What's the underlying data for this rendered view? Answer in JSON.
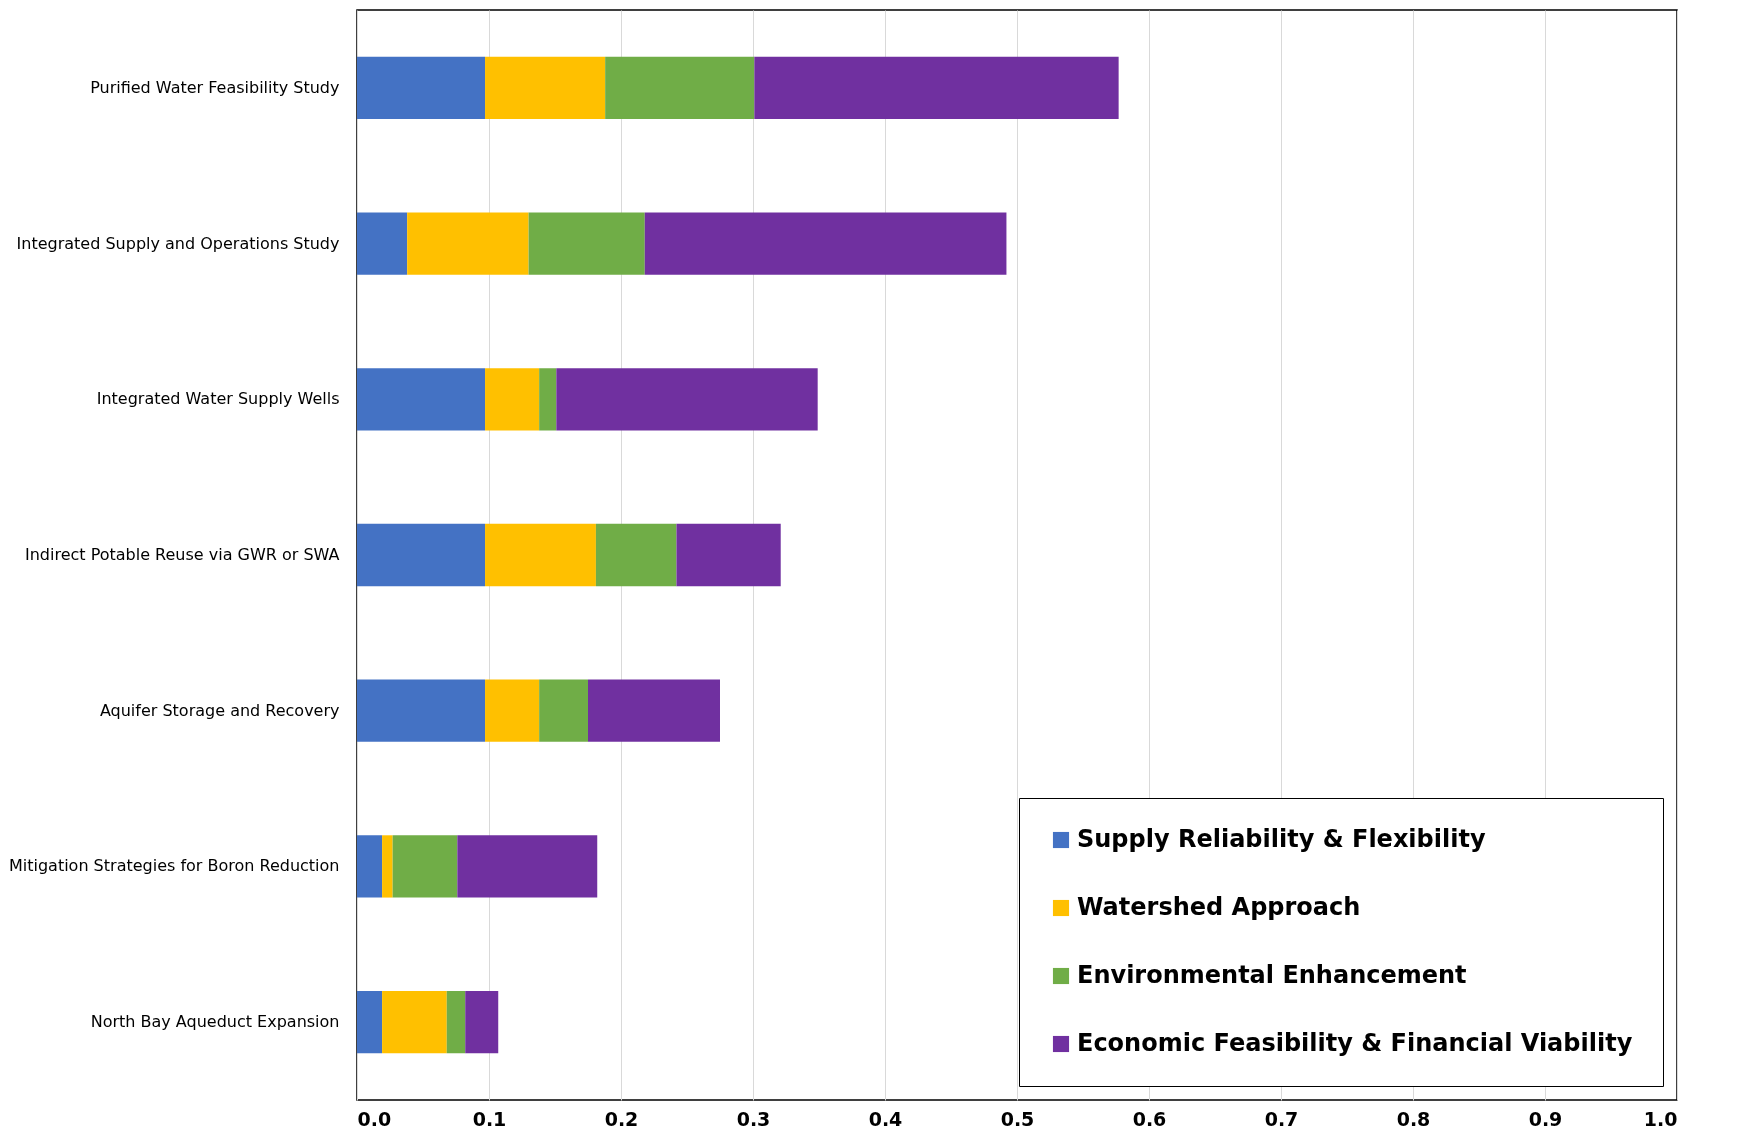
{
  "chart_data": {
    "type": "bar",
    "orientation": "horizontal",
    "stacked": true,
    "categories": [
      "Purified Water Feasibility Study",
      "Integrated Supply and Operations Study",
      "Integrated Water Supply Wells",
      "Indirect Potable Reuse via GWR or SWA",
      "Aquifer Storage and Recovery",
      "Mitigation Strategies for Boron Reduction",
      "North Bay Aqueduct Expansion"
    ],
    "series": [
      {
        "name": "Supply Reliability & Flexibility",
        "color": "#4472c4",
        "values": [
          0.097,
          0.038,
          0.097,
          0.097,
          0.097,
          0.019,
          0.019
        ]
      },
      {
        "name": "Watershed Approach",
        "color": "#ffc000",
        "values": [
          0.091,
          0.092,
          0.041,
          0.084,
          0.041,
          0.008,
          0.049
        ]
      },
      {
        "name": "Environmental Enhancement",
        "color": "#70ad47",
        "values": [
          0.113,
          0.088,
          0.013,
          0.061,
          0.037,
          0.049,
          0.014
        ]
      },
      {
        "name": "Economic Feasibility & Financial Viability",
        "color": "#7030a0",
        "values": [
          0.276,
          0.274,
          0.198,
          0.079,
          0.1,
          0.106,
          0.025
        ]
      }
    ],
    "xlim": [
      0,
      1
    ],
    "xticks": [
      {
        "value": 0,
        "label": "0.0"
      },
      0.1,
      0.2,
      0.3,
      0.4,
      0.5,
      0.6,
      0.7,
      0.8,
      0.9,
      {
        "value": 1,
        "label": "1.0"
      }
    ],
    "grid": "x",
    "legend": "bottom right"
  }
}
